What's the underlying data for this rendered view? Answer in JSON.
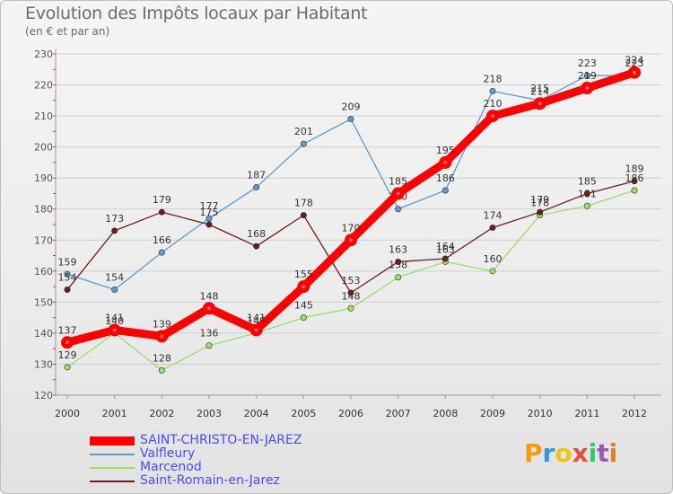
{
  "chart_data": {
    "type": "line",
    "title": "Evolution des Impôts locaux par Habitant",
    "subtitle": "(en € et par an)",
    "xlabel": "",
    "ylabel": "",
    "ylim": [
      120,
      230
    ],
    "yticks": [
      "120",
      "130",
      "140",
      "150",
      "160",
      "170",
      "180",
      "190",
      "200",
      "210",
      "220",
      "230"
    ],
    "categories": [
      "2000",
      "2001",
      "2002",
      "2003",
      "2004",
      "2005",
      "2006",
      "2007",
      "2008",
      "2009",
      "2010",
      "2011",
      "2012"
    ],
    "series": [
      {
        "name": "Valfleury",
        "color": "#5c9bd1",
        "values": [
          159,
          154,
          166,
          177,
          187,
          201,
          209,
          180,
          186,
          218,
          215,
          223,
          223
        ]
      },
      {
        "name": "Marcenod",
        "color": "#99e066",
        "values": [
          129,
          140,
          128,
          136,
          140,
          145,
          148,
          158,
          163,
          160,
          178,
          181,
          186
        ]
      },
      {
        "name": "Saint-Romain-en-Jarez",
        "color": "#6b1c1c",
        "values": [
          154,
          173,
          179,
          175,
          168,
          178,
          153,
          163,
          164,
          174,
          179,
          185,
          189
        ]
      },
      {
        "name": "SAINT-CHRISTO-EN-JAREZ",
        "color": "#ff0000",
        "values": [
          137,
          141,
          139,
          148,
          141,
          155,
          170,
          185,
          195,
          210,
          214,
          219,
          224
        ]
      }
    ],
    "legend": [
      "SAINT-CHRISTO-EN-JAREZ",
      "Valfleury",
      "Marcenod",
      "Saint-Romain-en-Jarez"
    ],
    "legend_position": "bottom-left"
  },
  "brand": {
    "letters": [
      "P",
      "r",
      "o",
      "x",
      "i",
      "t",
      "i"
    ],
    "colors": [
      "#f39c12",
      "#3498db",
      "#f1c40f",
      "#e74c3c",
      "#2ecc71",
      "#9b59b6",
      "#e67e22"
    ]
  }
}
